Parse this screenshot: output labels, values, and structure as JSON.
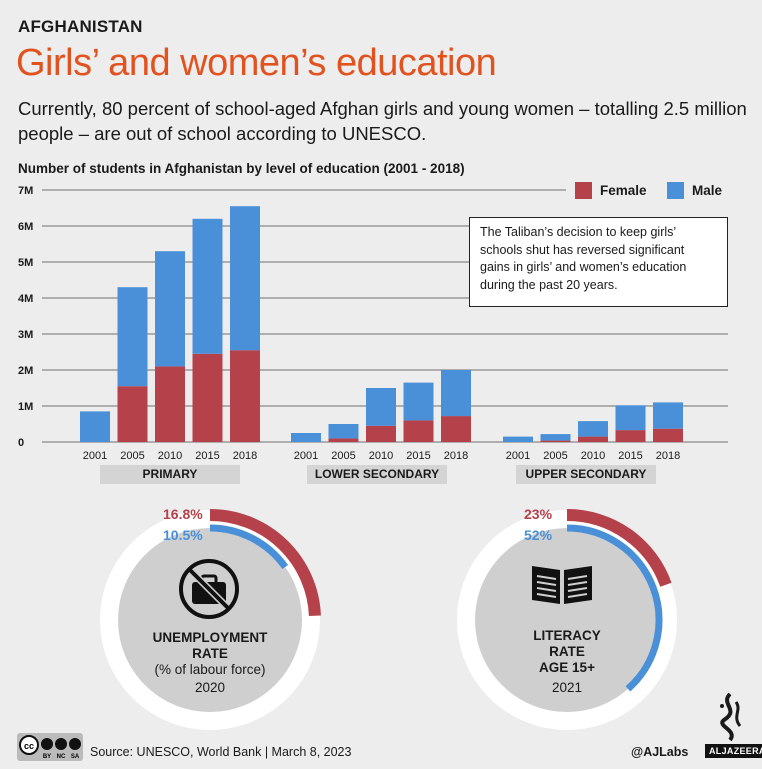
{
  "header": {
    "country": "AFGHANISTAN",
    "title": "Girls’ and women’s education",
    "subtitle": "Currently, 80 percent of school-aged Afghan girls and young women – totalling 2.5 million people – are out of school according to UNESCO."
  },
  "colors": {
    "female": "#b5414a",
    "male": "#4a90d9",
    "accent": "#e2521f"
  },
  "legend": {
    "female": "Female",
    "male": "Male"
  },
  "note": "The Taliban’s decision to keep girls’ schools shut has reversed significant gains in girls’ and women’s education during the past 20 years.",
  "chart_data": {
    "type": "bar",
    "stacked": true,
    "title": "Number of students in Afghanistan by level of education (2001 - 2018)",
    "y_ticks": [
      "0",
      "1M",
      "2M",
      "3M",
      "4M",
      "5M",
      "6M",
      "7M"
    ],
    "ylim": [
      0,
      7
    ],
    "unit": "million students",
    "legend_position": "top-right",
    "groups": [
      {
        "label": "PRIMARY",
        "categories": [
          "2001",
          "2005",
          "2010",
          "2015",
          "2018"
        ],
        "female": [
          0.0,
          1.55,
          2.1,
          2.45,
          2.55
        ],
        "male": [
          0.85,
          2.75,
          3.2,
          3.75,
          4.0
        ]
      },
      {
        "label": "LOWER SECONDARY",
        "categories": [
          "2001",
          "2005",
          "2010",
          "2015",
          "2018"
        ],
        "female": [
          0.0,
          0.1,
          0.45,
          0.6,
          0.72
        ],
        "male": [
          0.25,
          0.4,
          1.05,
          1.05,
          1.28
        ]
      },
      {
        "label": "UPPER SECONDARY",
        "categories": [
          "2001",
          "2005",
          "2010",
          "2015",
          "2018"
        ],
        "female": [
          0.0,
          0.04,
          0.15,
          0.33,
          0.37
        ],
        "male": [
          0.15,
          0.18,
          0.43,
          0.69,
          0.73
        ]
      }
    ]
  },
  "gauges": [
    {
      "female_pct": "16.8%",
      "male_pct": "10.5%",
      "female_value": 16.8,
      "male_value": 10.5,
      "icon": "no-briefcase-icon",
      "line1": "UNEMPLOYMENT",
      "line2": "RATE",
      "line3": "(% of labour force)",
      "year": "2020"
    },
    {
      "female_pct": "23%",
      "male_pct": "52%",
      "female_value": 23,
      "male_value": 52,
      "icon": "open-book-icon",
      "line1": "LITERACY",
      "line2": "RATE",
      "line3": "AGE 15+",
      "year": "2021"
    }
  ],
  "footer": {
    "source": "Source: UNESCO, World Bank  |  March 8, 2023",
    "handle": "@AJLabs",
    "brand": "ALJAZEERA",
    "license": [
      "BY",
      "NC",
      "SA"
    ]
  }
}
